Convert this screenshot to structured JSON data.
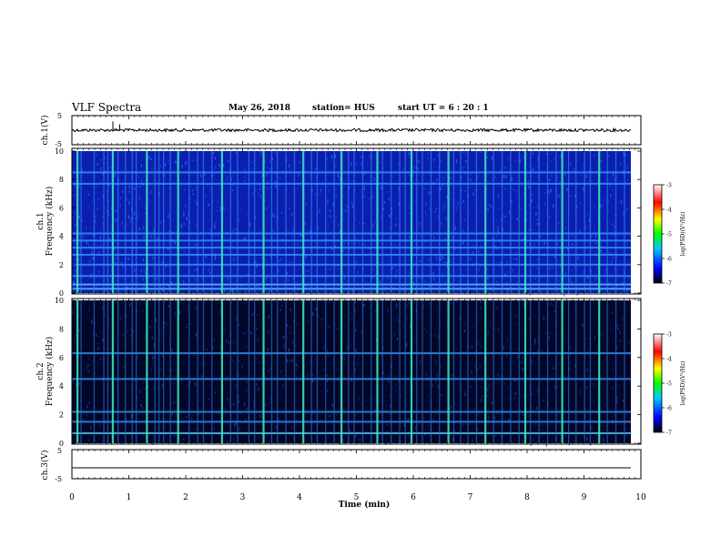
{
  "header": {
    "title": "VLF Spectra",
    "date": "May 26, 2018",
    "station": "station= HUS",
    "start": "start  UT  =   6  : 20 : 1"
  },
  "colors": {
    "spectrogram_background_ch1": "#0a1fae",
    "spectrogram_background_ch2": "#02072a",
    "colormap": [
      "#000000",
      "#0000ff",
      "#00c8ff",
      "#00ff00",
      "#ffff00",
      "#ff0000",
      "#ffffff"
    ]
  },
  "chart_data": [
    {
      "type": "line",
      "panel": "ch1-waveform",
      "ylabel": "ch.1(V)",
      "ylim": [
        -5,
        5
      ],
      "yticks": [
        "5",
        "-5"
      ],
      "xlim": [
        0,
        10
      ],
      "description_values": {
        "baseline": 0,
        "noise_amplitude": 0.5,
        "spikes": [
          {
            "x": 0.72,
            "y": 3
          },
          {
            "x": 0.84,
            "y": 2
          }
        ]
      }
    },
    {
      "type": "heatmap",
      "panel": "ch1-spectrogram",
      "ylabel": "ch.1\nFrequency  (kHz)",
      "ylabel_lines": [
        "ch.1",
        "Frequency  (kHz)"
      ],
      "ylim": [
        0,
        10
      ],
      "yticks": [
        "0",
        "2",
        "4",
        "6",
        "8",
        "10"
      ],
      "xlim": [
        0,
        10
      ],
      "colorbar": {
        "label": "log(PSD)(V²/Hz)",
        "ticks": [
          "-3",
          "-4",
          "-5",
          "-6",
          "-7"
        ],
        "range": [
          -7,
          -3
        ]
      },
      "horizontal_lines_khz": [
        0.3,
        0.6,
        1.2,
        2.0,
        2.7,
        3.2,
        3.7,
        4.2,
        7.7,
        8.5
      ]
    },
    {
      "type": "heatmap",
      "panel": "ch2-spectrogram",
      "ylabel": "ch.2\nFrequency  (kHz)",
      "ylabel_lines": [
        "ch.2",
        "Frequency  (kHz)"
      ],
      "ylim": [
        0,
        10
      ],
      "yticks": [
        "0",
        "2",
        "4",
        "6",
        "8",
        "10"
      ],
      "xlim": [
        0,
        10
      ],
      "colorbar": {
        "label": "log(PSD)(V²/Hz)",
        "ticks": [
          "-3",
          "-4",
          "-5",
          "-6",
          "-7"
        ],
        "range": [
          -7,
          -3
        ]
      },
      "horizontal_lines_khz": [
        0.7,
        1.5,
        2.2,
        4.5,
        6.3
      ]
    },
    {
      "type": "line",
      "panel": "ch3-waveform",
      "ylabel": "ch.3(V)",
      "ylim": [
        -5,
        5
      ],
      "yticks": [
        "5",
        "-5"
      ],
      "xlim": [
        0,
        10
      ],
      "description_values": {
        "baseline": -1.2
      }
    }
  ],
  "xaxis": {
    "label": "Time  (min)",
    "ticks": [
      "0",
      "1",
      "2",
      "3",
      "4",
      "5",
      "6",
      "7",
      "8",
      "9",
      "10"
    ]
  },
  "sferic_times_min": [
    0.08,
    0.15,
    0.38,
    0.55,
    0.62,
    0.7,
    0.8,
    0.93,
    1.05,
    1.12,
    1.3,
    1.45,
    1.52,
    1.6,
    1.72,
    1.85,
    2.05,
    2.2,
    2.3,
    2.45,
    2.62,
    2.78,
    2.9,
    3.1,
    3.2,
    3.35,
    3.5,
    3.6,
    3.75,
    3.9,
    4.05,
    4.2,
    4.3,
    4.45,
    4.6,
    4.72,
    4.85,
    4.95,
    5.1,
    5.25,
    5.35,
    5.45,
    5.6,
    5.75,
    5.85,
    5.95,
    6.05,
    6.15,
    6.3,
    6.45,
    6.6,
    6.7,
    6.82,
    6.95,
    7.1,
    7.25,
    7.4,
    7.55,
    7.7,
    7.85,
    7.95,
    8.05,
    8.2,
    8.35,
    8.5,
    8.6,
    8.72,
    8.85,
    9.0,
    9.1,
    9.25,
    9.4,
    9.55,
    9.7
  ]
}
